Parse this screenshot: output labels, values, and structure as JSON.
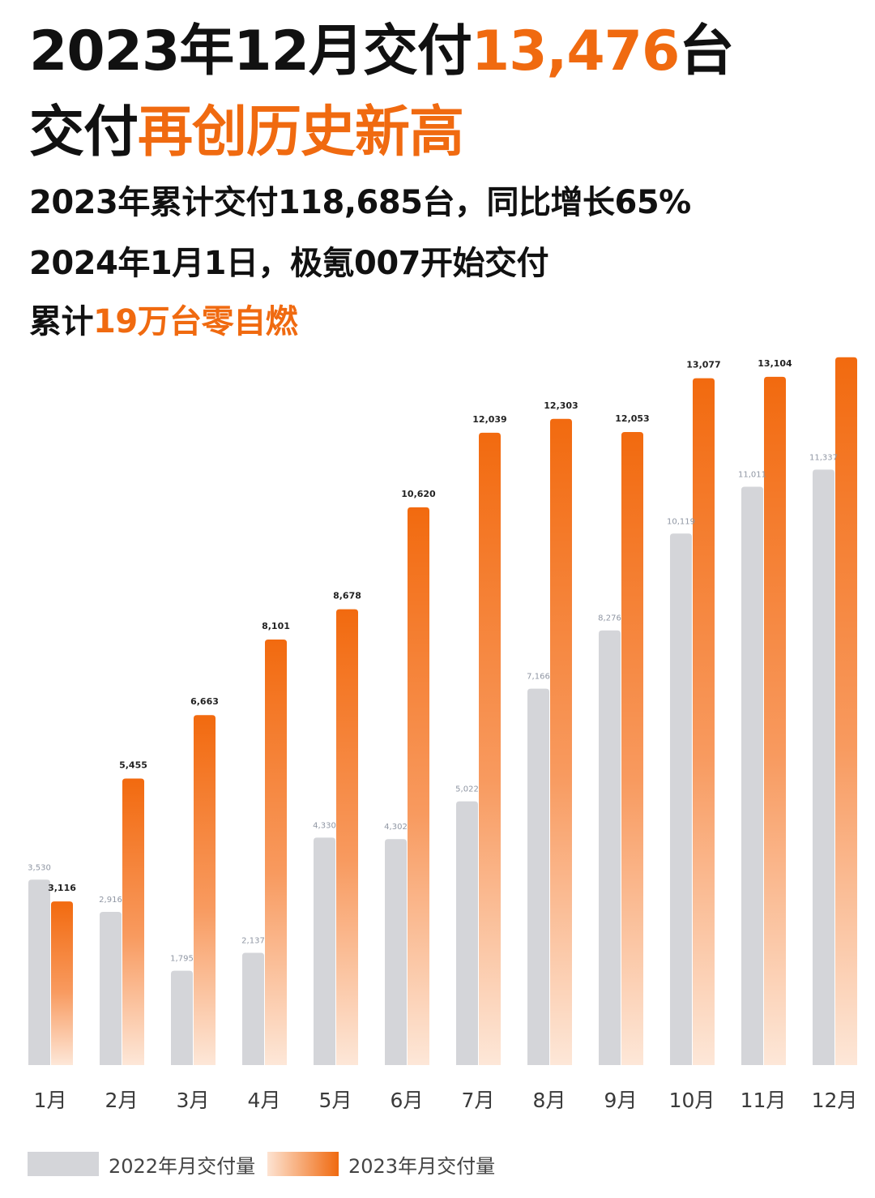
{
  "header": {
    "line1_prefix": "2023年12月交付",
    "line1_highlight": "13,476",
    "line1_suffix": "台",
    "line2_prefix": "交付",
    "line2_highlight": "再创历史新高",
    "line3": "2023年累计交付118,685台，同比增长65%",
    "line4": "2024年1月1日，极氪007开始交付",
    "line5_prefix": "累计",
    "line5_highlight": "19万台零自燃"
  },
  "colors": {
    "accent": "#f06a10",
    "bar_2022": "#d4d5d9",
    "bar_2023_top": "#f26a0f",
    "bar_2023_bottom": "#fde7d8"
  },
  "chart_data": {
    "type": "bar",
    "categories": [
      "1月",
      "2月",
      "3月",
      "4月",
      "5月",
      "6月",
      "7月",
      "8月",
      "9月",
      "10月",
      "11月",
      "12月"
    ],
    "series": [
      {
        "name": "2022年月交付量",
        "values": [
          3530,
          2916,
          1795,
          2137,
          4330,
          4302,
          5022,
          7166,
          8276,
          10119,
          11011,
          11337
        ]
      },
      {
        "name": "2023年月交付量",
        "values": [
          3116,
          5455,
          6663,
          8101,
          8678,
          10620,
          12039,
          12303,
          12053,
          13077,
          13104,
          13476
        ]
      }
    ],
    "ylim": [
      0,
      14000
    ],
    "grid": false,
    "legend_position": "bottom"
  }
}
